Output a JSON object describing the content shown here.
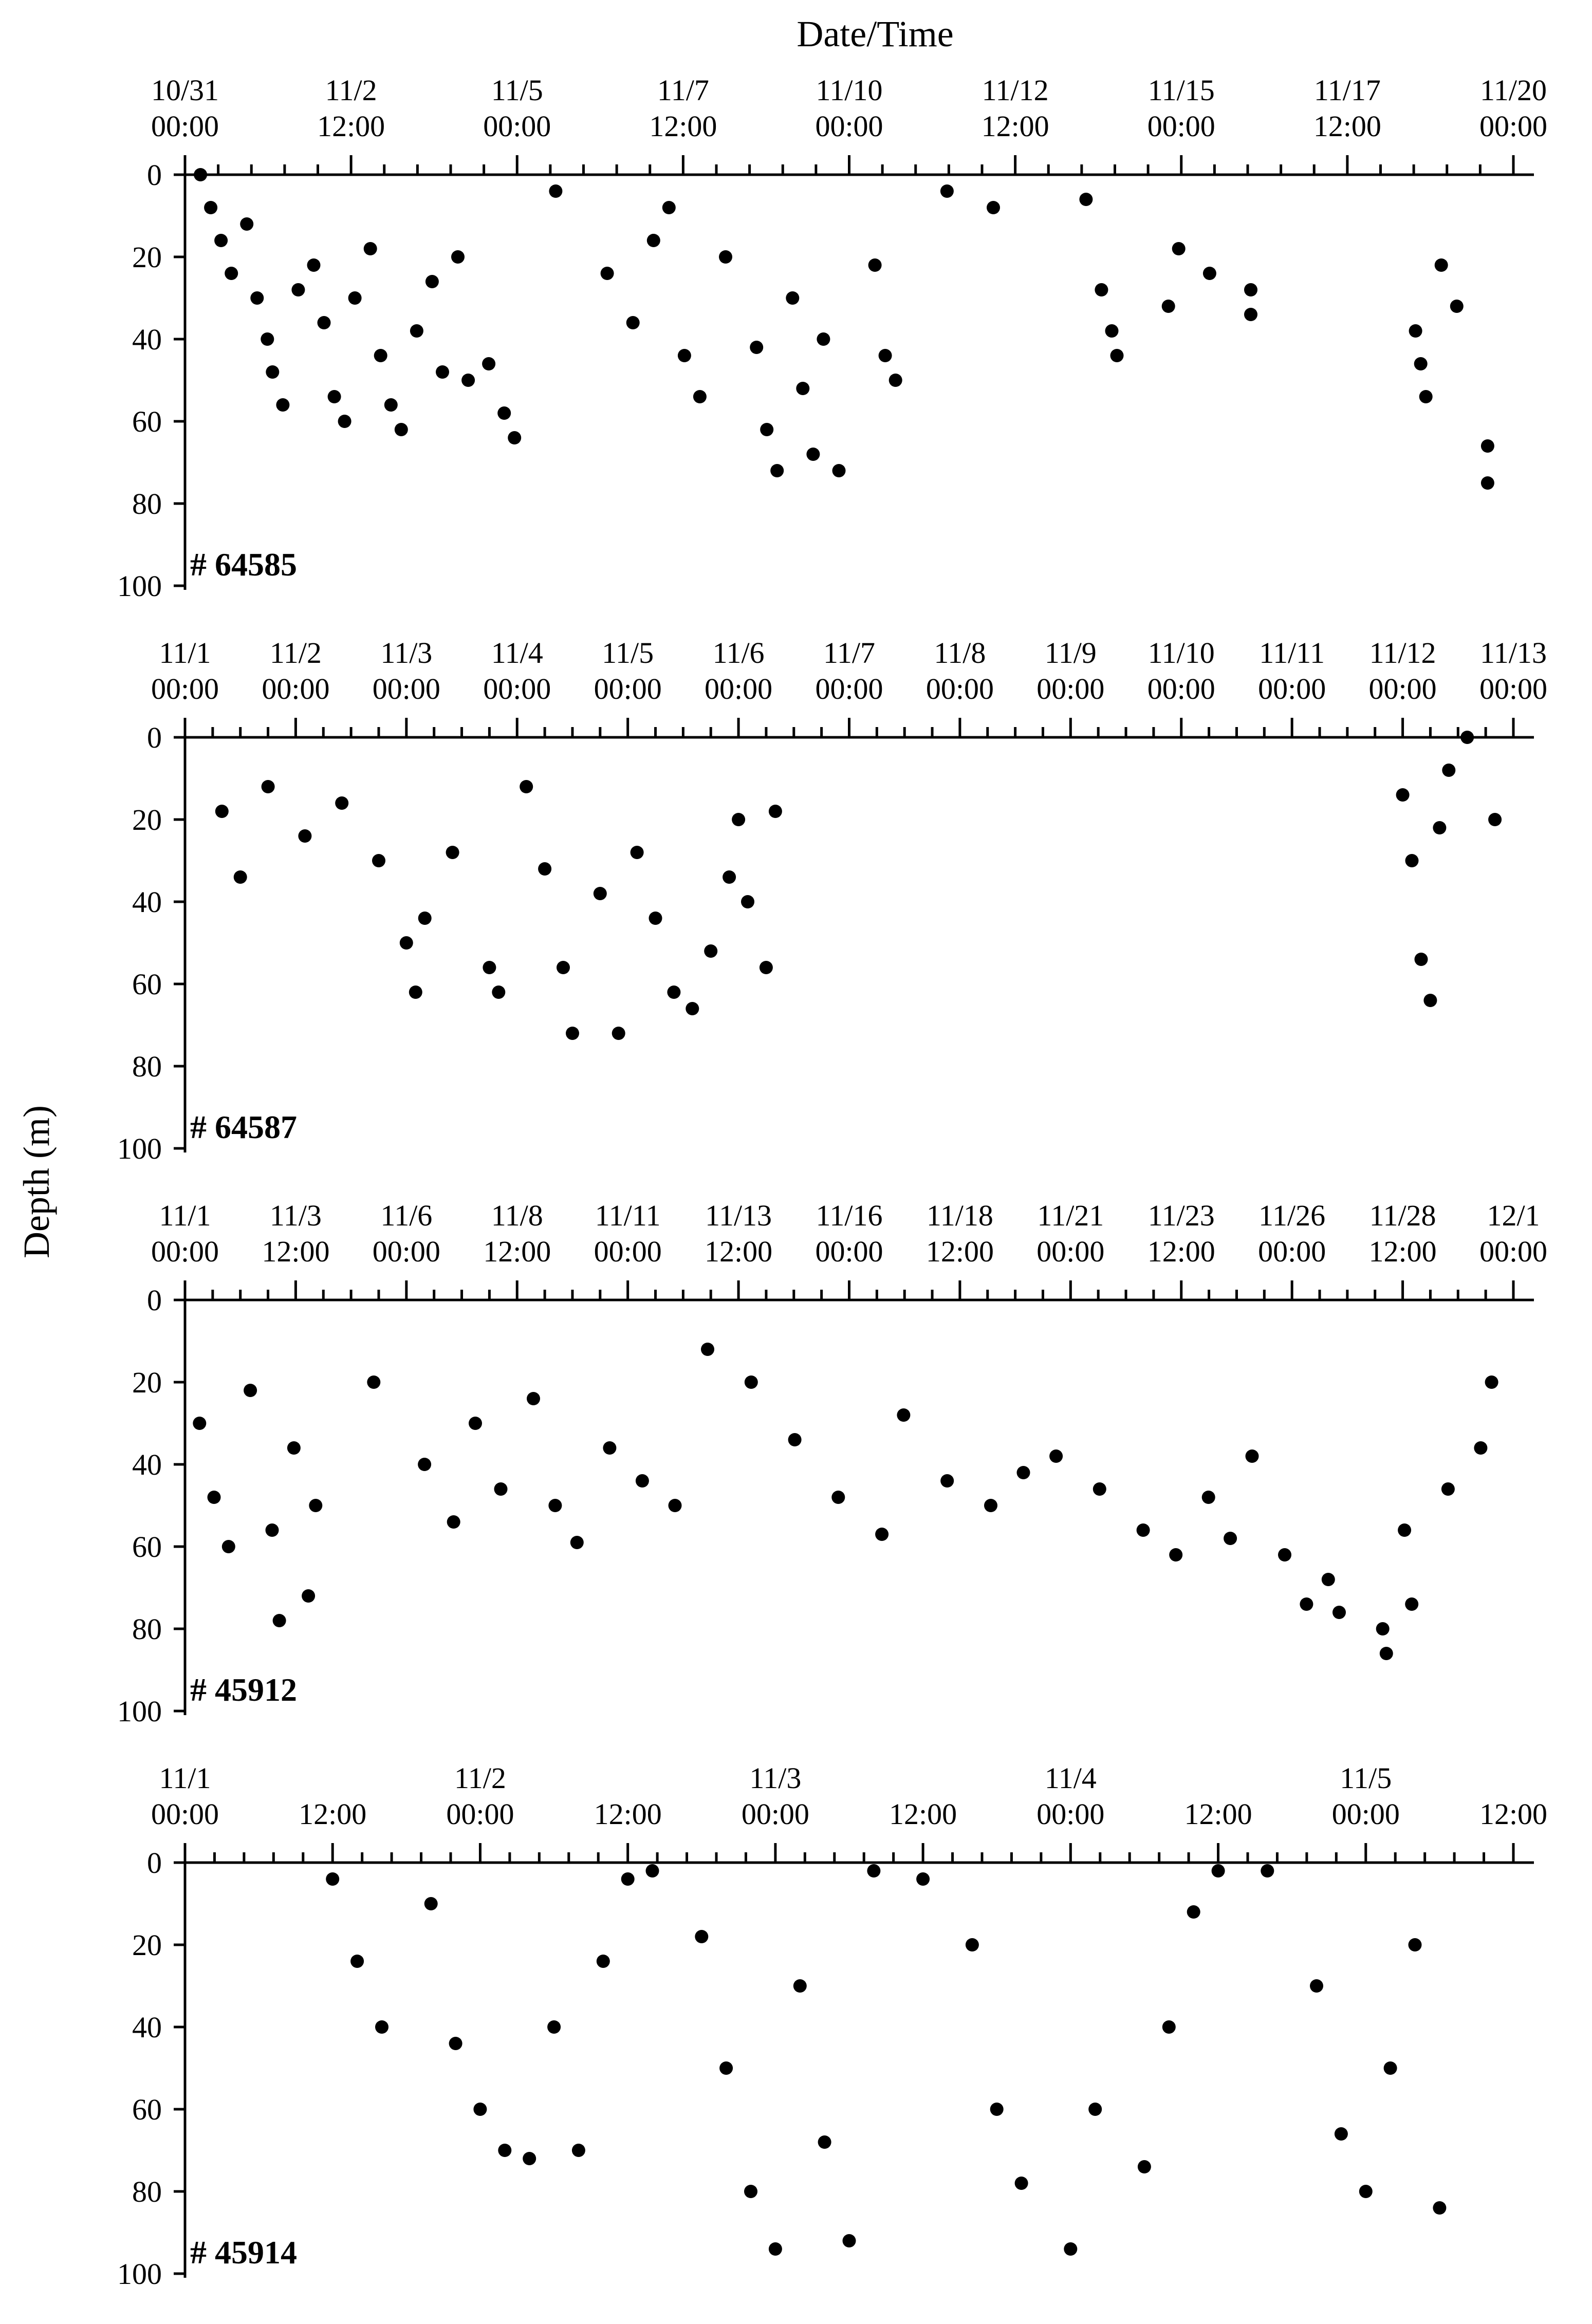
{
  "figure": {
    "x_title": "Date/Time",
    "y_title": "Depth (m)"
  },
  "chart_data": [
    {
      "type": "scatter",
      "panel_label": "# 64585",
      "x_tick_labels": [
        [
          "10/31",
          "00:00"
        ],
        [
          "11/2",
          "12:00"
        ],
        [
          "11/5",
          "00:00"
        ],
        [
          "11/7",
          "12:00"
        ],
        [
          "11/10",
          "00:00"
        ],
        [
          "11/12",
          "12:00"
        ],
        [
          "11/15",
          "00:00"
        ],
        [
          "11/17",
          "12:00"
        ],
        [
          "11/20",
          "00:00"
        ]
      ],
      "x_range": [
        "10/31 00:00",
        "11/21 12:00"
      ],
      "y_ticks": [
        0,
        20,
        40,
        60,
        80,
        100
      ],
      "ylim": [
        0,
        100
      ],
      "y_inverted": true,
      "grid": false,
      "points": [
        {
          "t": "10/31 06:00",
          "d": 0
        },
        {
          "t": "10/31 10:00",
          "d": 8
        },
        {
          "t": "10/31 14:00",
          "d": 16
        },
        {
          "t": "10/31 18:00",
          "d": 24
        },
        {
          "t": "11/1 00:00",
          "d": 12
        },
        {
          "t": "11/1 04:00",
          "d": 30
        },
        {
          "t": "11/1 08:00",
          "d": 40
        },
        {
          "t": "11/1 10:00",
          "d": 48
        },
        {
          "t": "11/1 14:00",
          "d": 56
        },
        {
          "t": "11/1 20:00",
          "d": 28
        },
        {
          "t": "11/2 02:00",
          "d": 22
        },
        {
          "t": "11/2 06:00",
          "d": 36
        },
        {
          "t": "11/2 10:00",
          "d": 54
        },
        {
          "t": "11/2 14:00",
          "d": 60
        },
        {
          "t": "11/2 18:00",
          "d": 30
        },
        {
          "t": "11/3 00:00",
          "d": 18
        },
        {
          "t": "11/3 04:00",
          "d": 44
        },
        {
          "t": "11/3 08:00",
          "d": 56
        },
        {
          "t": "11/3 12:00",
          "d": 62
        },
        {
          "t": "11/3 18:00",
          "d": 38
        },
        {
          "t": "11/4 00:00",
          "d": 26
        },
        {
          "t": "11/4 04:00",
          "d": 48
        },
        {
          "t": "11/4 10:00",
          "d": 20
        },
        {
          "t": "11/4 14:00",
          "d": 50
        },
        {
          "t": "11/4 22:00",
          "d": 46
        },
        {
          "t": "11/5 04:00",
          "d": 58
        },
        {
          "t": "11/5 08:00",
          "d": 64
        },
        {
          "t": "11/6 00:00",
          "d": 4
        },
        {
          "t": "11/6 20:00",
          "d": 24
        },
        {
          "t": "11/7 06:00",
          "d": 36
        },
        {
          "t": "11/7 14:00",
          "d": 16
        },
        {
          "t": "11/7 20:00",
          "d": 8
        },
        {
          "t": "11/8 02:00",
          "d": 44
        },
        {
          "t": "11/8 08:00",
          "d": 54
        },
        {
          "t": "11/8 18:00",
          "d": 20
        },
        {
          "t": "11/9 06:00",
          "d": 42
        },
        {
          "t": "11/9 10:00",
          "d": 62
        },
        {
          "t": "11/9 14:00",
          "d": 72
        },
        {
          "t": "11/9 20:00",
          "d": 30
        },
        {
          "t": "11/10 00:00",
          "d": 52
        },
        {
          "t": "11/10 04:00",
          "d": 68
        },
        {
          "t": "11/10 08:00",
          "d": 40
        },
        {
          "t": "11/10 14:00",
          "d": 72
        },
        {
          "t": "11/11 08:00",
          "d": 44
        },
        {
          "t": "11/11 12:00",
          "d": 50
        },
        {
          "t": "11/11 04:00",
          "d": 22
        },
        {
          "t": "11/12 08:00",
          "d": 4
        },
        {
          "t": "11/13 02:00",
          "d": 8
        },
        {
          "t": "11/14 14:00",
          "d": 6
        },
        {
          "t": "11/14 20:00",
          "d": 28
        },
        {
          "t": "11/15 00:00",
          "d": 38
        },
        {
          "t": "11/15 02:00",
          "d": 44
        },
        {
          "t": "11/15 22:00",
          "d": 32
        },
        {
          "t": "11/16 02:00",
          "d": 18
        },
        {
          "t": "11/16 14:00",
          "d": 24
        },
        {
          "t": "11/17 06:00",
          "d": 28
        },
        {
          "t": "11/17 06:00",
          "d": 34
        },
        {
          "t": "11/19 22:00",
          "d": 38
        },
        {
          "t": "11/20 00:00",
          "d": 46
        },
        {
          "t": "11/20 02:00",
          "d": 54
        },
        {
          "t": "11/20 08:00",
          "d": 22
        },
        {
          "t": "11/20 14:00",
          "d": 32
        },
        {
          "t": "11/21 02:00",
          "d": 66
        },
        {
          "t": "11/21 02:00",
          "d": 75
        }
      ]
    },
    {
      "type": "scatter",
      "panel_label": "# 64587",
      "x_tick_labels": [
        [
          "11/1",
          "00:00"
        ],
        [
          "11/2",
          "00:00"
        ],
        [
          "11/3",
          "00:00"
        ],
        [
          "11/4",
          "00:00"
        ],
        [
          "11/5",
          "00:00"
        ],
        [
          "11/6",
          "00:00"
        ],
        [
          "11/7",
          "00:00"
        ],
        [
          "11/8",
          "00:00"
        ],
        [
          "11/9",
          "00:00"
        ],
        [
          "11/10",
          "00:00"
        ],
        [
          "11/11",
          "00:00"
        ],
        [
          "11/12",
          "00:00"
        ],
        [
          "11/13",
          "00:00"
        ]
      ],
      "x_range": [
        "11/1 00:00",
        "11/13 00:00"
      ],
      "y_ticks": [
        0,
        20,
        40,
        60,
        80,
        100
      ],
      "ylim": [
        0,
        100
      ],
      "y_inverted": true,
      "grid": false,
      "points": [
        {
          "t": "11/1 08:00",
          "d": 18
        },
        {
          "t": "11/1 12:00",
          "d": 34
        },
        {
          "t": "11/1 18:00",
          "d": 12
        },
        {
          "t": "11/2 02:00",
          "d": 24
        },
        {
          "t": "11/2 10:00",
          "d": 16
        },
        {
          "t": "11/2 18:00",
          "d": 30
        },
        {
          "t": "11/3 00:00",
          "d": 50
        },
        {
          "t": "11/3 02:00",
          "d": 62
        },
        {
          "t": "11/3 04:00",
          "d": 44
        },
        {
          "t": "11/3 10:00",
          "d": 28
        },
        {
          "t": "11/3 18:00",
          "d": 56
        },
        {
          "t": "11/3 20:00",
          "d": 62
        },
        {
          "t": "11/4 02:00",
          "d": 12
        },
        {
          "t": "11/4 06:00",
          "d": 32
        },
        {
          "t": "11/4 10:00",
          "d": 56
        },
        {
          "t": "11/4 12:00",
          "d": 72
        },
        {
          "t": "11/4 18:00",
          "d": 38
        },
        {
          "t": "11/4 22:00",
          "d": 72
        },
        {
          "t": "11/5 02:00",
          "d": 28
        },
        {
          "t": "11/5 06:00",
          "d": 44
        },
        {
          "t": "11/5 10:00",
          "d": 62
        },
        {
          "t": "11/5 14:00",
          "d": 66
        },
        {
          "t": "11/5 18:00",
          "d": 52
        },
        {
          "t": "11/5 22:00",
          "d": 34
        },
        {
          "t": "11/6 00:00",
          "d": 20
        },
        {
          "t": "11/6 02:00",
          "d": 40
        },
        {
          "t": "11/6 06:00",
          "d": 56
        },
        {
          "t": "11/6 08:00",
          "d": 18
        },
        {
          "t": "11/12 00:00",
          "d": 14
        },
        {
          "t": "11/12 02:00",
          "d": 30
        },
        {
          "t": "11/12 04:00",
          "d": 54
        },
        {
          "t": "11/12 06:00",
          "d": 64
        },
        {
          "t": "11/12 08:00",
          "d": 22
        },
        {
          "t": "11/12 10:00",
          "d": 8
        },
        {
          "t": "11/12 14:00",
          "d": 0
        },
        {
          "t": "11/12 20:00",
          "d": 20
        }
      ]
    },
    {
      "type": "scatter",
      "panel_label": "# 45912",
      "x_tick_labels": [
        [
          "11/1",
          "00:00"
        ],
        [
          "11/3",
          "12:00"
        ],
        [
          "11/6",
          "00:00"
        ],
        [
          "11/8",
          "12:00"
        ],
        [
          "11/11",
          "00:00"
        ],
        [
          "11/13",
          "12:00"
        ],
        [
          "11/16",
          "00:00"
        ],
        [
          "11/18",
          "12:00"
        ],
        [
          "11/21",
          "00:00"
        ],
        [
          "11/23",
          "12:00"
        ],
        [
          "11/26",
          "00:00"
        ],
        [
          "11/28",
          "12:00"
        ],
        [
          "12/1",
          "00:00"
        ]
      ],
      "x_range": [
        "11/1 00:00",
        "12/1 12:00"
      ],
      "y_ticks": [
        0,
        20,
        40,
        60,
        80,
        100
      ],
      "ylim": [
        0,
        100
      ],
      "y_inverted": true,
      "grid": false,
      "points": [
        {
          "t": "11/1 08:00",
          "d": 30
        },
        {
          "t": "11/1 16:00",
          "d": 48
        },
        {
          "t": "11/2 00:00",
          "d": 60
        },
        {
          "t": "11/2 12:00",
          "d": 22
        },
        {
          "t": "11/3 00:00",
          "d": 56
        },
        {
          "t": "11/3 04:00",
          "d": 78
        },
        {
          "t": "11/3 12:00",
          "d": 36
        },
        {
          "t": "11/3 20:00",
          "d": 72
        },
        {
          "t": "11/4 00:00",
          "d": 50
        },
        {
          "t": "11/5 08:00",
          "d": 20
        },
        {
          "t": "11/6 12:00",
          "d": 40
        },
        {
          "t": "11/7 04:00",
          "d": 54
        },
        {
          "t": "11/7 16:00",
          "d": 30
        },
        {
          "t": "11/8 06:00",
          "d": 46
        },
        {
          "t": "11/9 00:00",
          "d": 24
        },
        {
          "t": "11/9 12:00",
          "d": 50
        },
        {
          "t": "11/10 00:00",
          "d": 59
        },
        {
          "t": "11/10 18:00",
          "d": 36
        },
        {
          "t": "11/11 12:00",
          "d": 44
        },
        {
          "t": "11/12 06:00",
          "d": 50
        },
        {
          "t": "11/13 00:00",
          "d": 12
        },
        {
          "t": "11/14 00:00",
          "d": 20
        },
        {
          "t": "11/15 00:00",
          "d": 34
        },
        {
          "t": "11/16 00:00",
          "d": 48
        },
        {
          "t": "11/17 00:00",
          "d": 57
        },
        {
          "t": "11/17 12:00",
          "d": 28
        },
        {
          "t": "11/18 12:00",
          "d": 44
        },
        {
          "t": "11/19 12:00",
          "d": 50
        },
        {
          "t": "11/20 06:00",
          "d": 42
        },
        {
          "t": "11/21 00:00",
          "d": 38
        },
        {
          "t": "11/22 00:00",
          "d": 46
        },
        {
          "t": "11/23 00:00",
          "d": 56
        },
        {
          "t": "11/23 18:00",
          "d": 62
        },
        {
          "t": "11/24 12:00",
          "d": 48
        },
        {
          "t": "11/25 00:00",
          "d": 58
        },
        {
          "t": "11/25 12:00",
          "d": 38
        },
        {
          "t": "11/26 06:00",
          "d": 62
        },
        {
          "t": "11/26 18:00",
          "d": 74
        },
        {
          "t": "11/27 06:00",
          "d": 68
        },
        {
          "t": "11/27 12:00",
          "d": 76
        },
        {
          "t": "11/28 12:00",
          "d": 80
        },
        {
          "t": "11/28 14:00",
          "d": 86
        },
        {
          "t": "11/29 00:00",
          "d": 56
        },
        {
          "t": "11/29 04:00",
          "d": 74
        },
        {
          "t": "11/30 00:00",
          "d": 46
        },
        {
          "t": "11/30 18:00",
          "d": 36
        },
        {
          "t": "12/1 00:00",
          "d": 20
        }
      ]
    },
    {
      "type": "scatter",
      "panel_label": "# 45914",
      "x_tick_labels": [
        [
          "11/1",
          "00:00"
        ],
        [
          "",
          "12:00"
        ],
        [
          "11/2",
          "00:00"
        ],
        [
          "",
          "12:00"
        ],
        [
          "11/3",
          "00:00"
        ],
        [
          "",
          "12:00"
        ],
        [
          "11/4",
          "00:00"
        ],
        [
          "",
          "12:00"
        ],
        [
          "11/5",
          "00:00"
        ],
        [
          "",
          "12:00"
        ]
      ],
      "x_range": [
        "11/1 00:00",
        "11/5 12:00"
      ],
      "y_ticks": [
        0,
        20,
        40,
        60,
        80,
        100
      ],
      "ylim": [
        0,
        100
      ],
      "y_inverted": true,
      "grid": false,
      "points": [
        {
          "t": "11/1 12:00",
          "d": 4
        },
        {
          "t": "11/1 14:00",
          "d": 24
        },
        {
          "t": "11/1 16:00",
          "d": 40
        },
        {
          "t": "11/1 20:00",
          "d": 10
        },
        {
          "t": "11/1 22:00",
          "d": 44
        },
        {
          "t": "11/2 00:00",
          "d": 60
        },
        {
          "t": "11/2 02:00",
          "d": 70
        },
        {
          "t": "11/2 04:00",
          "d": 72
        },
        {
          "t": "11/2 06:00",
          "d": 40
        },
        {
          "t": "11/2 08:00",
          "d": 70
        },
        {
          "t": "11/2 10:00",
          "d": 24
        },
        {
          "t": "11/2 12:00",
          "d": 4
        },
        {
          "t": "11/2 14:00",
          "d": 2
        },
        {
          "t": "11/2 18:00",
          "d": 18
        },
        {
          "t": "11/2 20:00",
          "d": 50
        },
        {
          "t": "11/2 22:00",
          "d": 80
        },
        {
          "t": "11/3 00:00",
          "d": 94
        },
        {
          "t": "11/3 02:00",
          "d": 30
        },
        {
          "t": "11/3 04:00",
          "d": 68
        },
        {
          "t": "11/3 06:00",
          "d": 92
        },
        {
          "t": "11/3 08:00",
          "d": 2
        },
        {
          "t": "11/3 12:00",
          "d": 4
        },
        {
          "t": "11/3 16:00",
          "d": 20
        },
        {
          "t": "11/3 18:00",
          "d": 60
        },
        {
          "t": "11/3 20:00",
          "d": 78
        },
        {
          "t": "11/4 00:00",
          "d": 94
        },
        {
          "t": "11/4 02:00",
          "d": 60
        },
        {
          "t": "11/4 06:00",
          "d": 74
        },
        {
          "t": "11/4 08:00",
          "d": 40
        },
        {
          "t": "11/4 10:00",
          "d": 12
        },
        {
          "t": "11/4 12:00",
          "d": 2
        },
        {
          "t": "11/4 16:00",
          "d": 2
        },
        {
          "t": "11/4 20:00",
          "d": 30
        },
        {
          "t": "11/4 22:00",
          "d": 66
        },
        {
          "t": "11/5 00:00",
          "d": 80
        },
        {
          "t": "11/5 02:00",
          "d": 50
        },
        {
          "t": "11/5 04:00",
          "d": 20
        },
        {
          "t": "11/5 06:00",
          "d": 84
        }
      ]
    }
  ]
}
